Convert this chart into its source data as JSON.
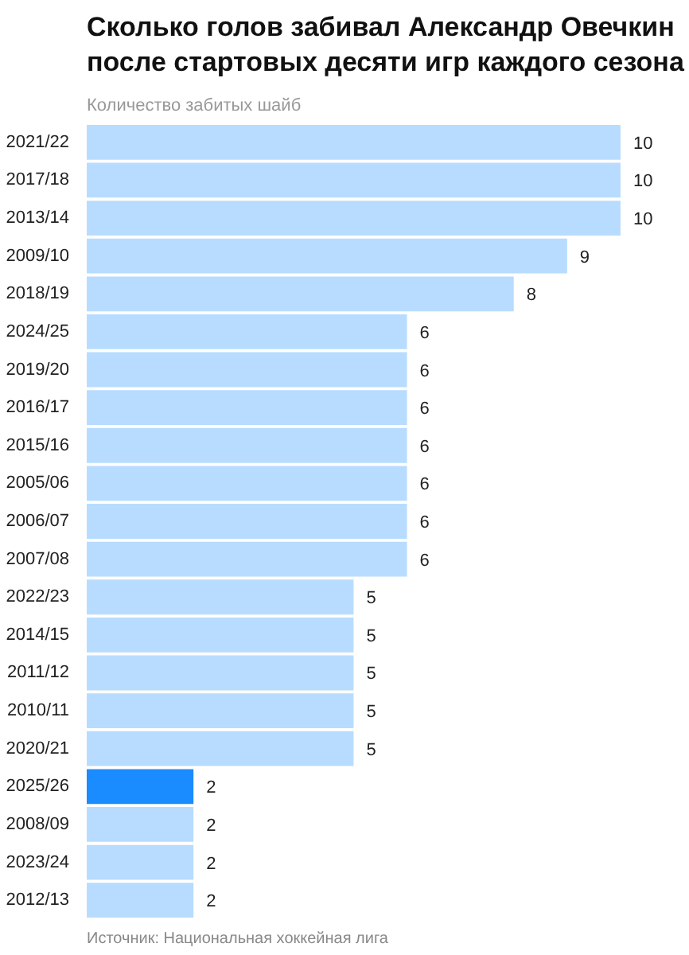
{
  "chart_data": {
    "type": "bar",
    "orientation": "horizontal",
    "title": "Сколько голов забивал Александр Овечкин после стартовых десяти игр каждого сезона",
    "subtitle": "Количество забитых шайб",
    "categories": [
      "2021/22",
      "2017/18",
      "2013/14",
      "2009/10",
      "2018/19",
      "2024/25",
      "2019/20",
      "2016/17",
      "2015/16",
      "2005/06",
      "2006/07",
      "2007/08",
      "2022/23",
      "2014/15",
      "2011/12",
      "2010/11",
      "2020/21",
      "2025/26",
      "2008/09",
      "2023/24",
      "2012/13"
    ],
    "values": [
      10,
      10,
      10,
      9,
      8,
      6,
      6,
      6,
      6,
      6,
      6,
      6,
      5,
      5,
      5,
      5,
      5,
      2,
      2,
      2,
      2
    ],
    "colors": [
      "#b8dcff",
      "#b8dcff",
      "#b8dcff",
      "#b8dcff",
      "#b8dcff",
      "#b8dcff",
      "#b8dcff",
      "#b8dcff",
      "#b8dcff",
      "#b8dcff",
      "#b8dcff",
      "#b8dcff",
      "#b8dcff",
      "#b8dcff",
      "#b8dcff",
      "#b8dcff",
      "#b8dcff",
      "#1a8cff",
      "#b8dcff",
      "#b8dcff",
      "#b8dcff"
    ],
    "data_labels": true,
    "grid": false,
    "annotations": [
      "Источник: Национальная хоккейная лига"
    ]
  }
}
